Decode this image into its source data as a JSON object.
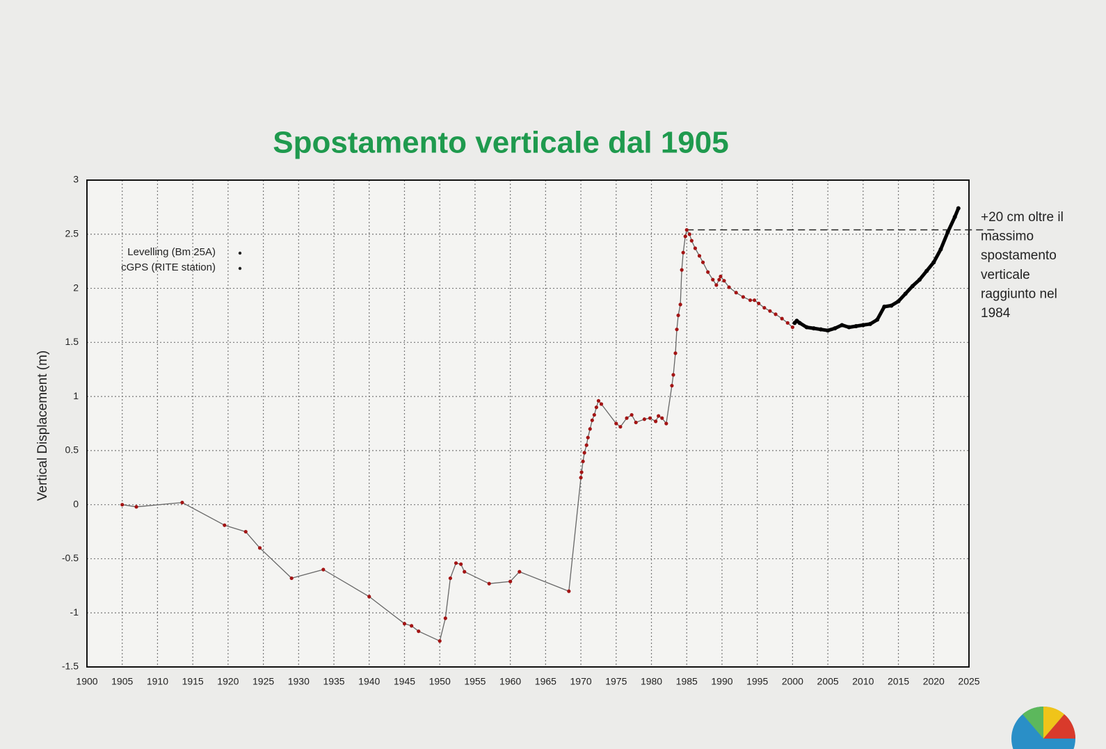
{
  "chart_data": {
    "type": "line",
    "title": "Spostamento verticale  dal 1905",
    "ylabel": "Vertical Displacement (m)",
    "xlim": [
      1900,
      2025
    ],
    "xticks": [
      1900,
      1905,
      1910,
      1915,
      1920,
      1925,
      1930,
      1935,
      1940,
      1945,
      1950,
      1955,
      1960,
      1965,
      1970,
      1975,
      1980,
      1985,
      1990,
      1995,
      2000,
      2005,
      2010,
      2015,
      2020,
      2025
    ],
    "ylim": [
      -1.5,
      3
    ],
    "yticks": [
      -1.5,
      -1,
      -0.5,
      0,
      0.5,
      1,
      1.5,
      2,
      2.5,
      3
    ],
    "grid": true,
    "legend": "upper-left",
    "series": [
      {
        "name": "Levelling (Bm 25A)",
        "color": "#a31414",
        "x": [
          1905,
          1907,
          1913.5,
          1919.5,
          1922.5,
          1924.5,
          1929,
          1933.5,
          1940,
          1945,
          1946,
          1947,
          1950,
          1950.8,
          1951.5,
          1952.3,
          1953,
          1953.5,
          1957,
          1960,
          1961.3,
          1968.3,
          1970,
          1970.1,
          1970.3,
          1970.5,
          1970.8,
          1971,
          1971.3,
          1971.6,
          1971.9,
          1972.2,
          1972.5,
          1972.9,
          1975,
          1975.6,
          1976.5,
          1977.2,
          1977.8,
          1979,
          1979.8,
          1980.6,
          1981,
          1981.5,
          1982.1,
          1982.9,
          1983.1,
          1983.4,
          1983.6,
          1983.8,
          1984.1,
          1984.3,
          1984.5,
          1984.8,
          1985,
          1985.4,
          1985.7,
          1986.2,
          1986.8,
          1987.3,
          1988,
          1988.7,
          1989.2,
          1989.6,
          1989.8,
          1990.3,
          1991,
          1992,
          1993,
          1994,
          1994.6,
          1995.2,
          1996,
          1996.8,
          1997.6,
          1998.5,
          1999.3,
          2000
        ],
        "values": [
          0.0,
          -0.02,
          0.02,
          -0.19,
          -0.25,
          -0.4,
          -0.68,
          -0.6,
          -0.85,
          -1.1,
          -1.12,
          -1.17,
          -1.26,
          -1.05,
          -0.68,
          -0.54,
          -0.55,
          -0.62,
          -0.73,
          -0.71,
          -0.62,
          -0.8,
          0.25,
          0.3,
          0.4,
          0.48,
          0.55,
          0.62,
          0.7,
          0.78,
          0.83,
          0.9,
          0.96,
          0.93,
          0.75,
          0.72,
          0.8,
          0.83,
          0.76,
          0.79,
          0.8,
          0.77,
          0.82,
          0.8,
          0.75,
          1.1,
          1.2,
          1.4,
          1.62,
          1.75,
          1.85,
          2.17,
          2.33,
          2.48,
          2.54,
          2.5,
          2.44,
          2.37,
          2.3,
          2.24,
          2.15,
          2.08,
          2.03,
          2.08,
          2.11,
          2.07,
          2.01,
          1.96,
          1.92,
          1.89,
          1.89,
          1.86,
          1.82,
          1.79,
          1.76,
          1.72,
          1.68,
          1.64
        ]
      },
      {
        "name": "cGPS (RITE station)",
        "color": "#000000",
        "x": [
          2000.3,
          2000.6,
          2001,
          2002,
          2003,
          2004,
          2005,
          2006,
          2007,
          2008,
          2009,
          2010,
          2011,
          2012,
          2013,
          2014,
          2015,
          2016,
          2017,
          2018,
          2019,
          2020,
          2021,
          2022,
          2023,
          2023.5
        ],
        "values": [
          1.68,
          1.7,
          1.68,
          1.64,
          1.63,
          1.62,
          1.61,
          1.63,
          1.66,
          1.64,
          1.65,
          1.66,
          1.67,
          1.71,
          1.83,
          1.84,
          1.88,
          1.95,
          2.02,
          2.08,
          2.16,
          2.24,
          2.36,
          2.52,
          2.66,
          2.74
        ]
      }
    ],
    "reference_y": 2.54,
    "annotation": [
      "+20 cm oltre il",
      "massimo",
      "spostamento",
      "verticale",
      "raggiunto nel",
      "1984"
    ]
  }
}
